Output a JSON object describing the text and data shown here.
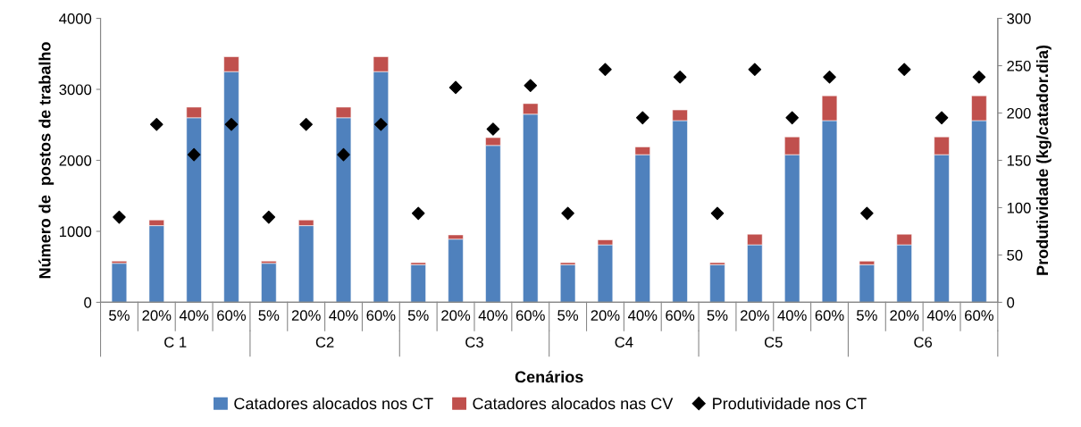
{
  "chart_data": {
    "type": "bar",
    "stacked": true,
    "xlabel": "Cenários",
    "ylabel": "Número de  postos de trabalho",
    "y2label": "Produtividade (kg/catador.dia)",
    "categories": [
      "5%",
      "20%",
      "40%",
      "60%",
      "5%",
      "20%",
      "40%",
      "60%",
      "5%",
      "20%",
      "40%",
      "60%",
      "5%",
      "20%",
      "40%",
      "60%",
      "5%",
      "20%",
      "40%",
      "60%",
      "5%",
      "20%",
      "40%",
      "60%"
    ],
    "annotations": [
      "C 1",
      "C2",
      "C3",
      "C4",
      "C5",
      "C6"
    ],
    "series": [
      {
        "name": "Catadores alocados nos CT",
        "color": "#4f81bd",
        "values": [
          550,
          1080,
          2600,
          3250,
          550,
          1080,
          2600,
          3250,
          530,
          890,
          2210,
          2650,
          530,
          810,
          2080,
          2560,
          530,
          810,
          2080,
          2560,
          530,
          810,
          2080,
          2560
        ]
      },
      {
        "name": "Catadores alocados nas CV",
        "color": "#c0504d",
        "values": [
          30,
          80,
          150,
          210,
          30,
          80,
          150,
          210,
          30,
          60,
          110,
          150,
          30,
          70,
          110,
          150,
          30,
          150,
          250,
          350,
          50,
          150,
          250,
          350
        ]
      },
      {
        "name": "Produtividade nos CT",
        "type": "scatter",
        "axis": "y2",
        "marker": "diamond",
        "color": "#000000",
        "values": [
          90,
          188,
          156,
          188,
          90,
          188,
          156,
          188,
          94,
          227,
          183,
          229,
          94,
          246,
          195,
          238,
          94,
          246,
          195,
          238,
          94,
          246,
          195,
          238
        ]
      }
    ],
    "ylim": [
      0,
      4000
    ],
    "yticks": [
      0,
      1000,
      2000,
      3000,
      4000
    ],
    "y2lim": [
      0,
      300
    ],
    "y2ticks": [
      0,
      50,
      100,
      150,
      200,
      250,
      300
    ],
    "grid": false,
    "legend": "bottom"
  }
}
